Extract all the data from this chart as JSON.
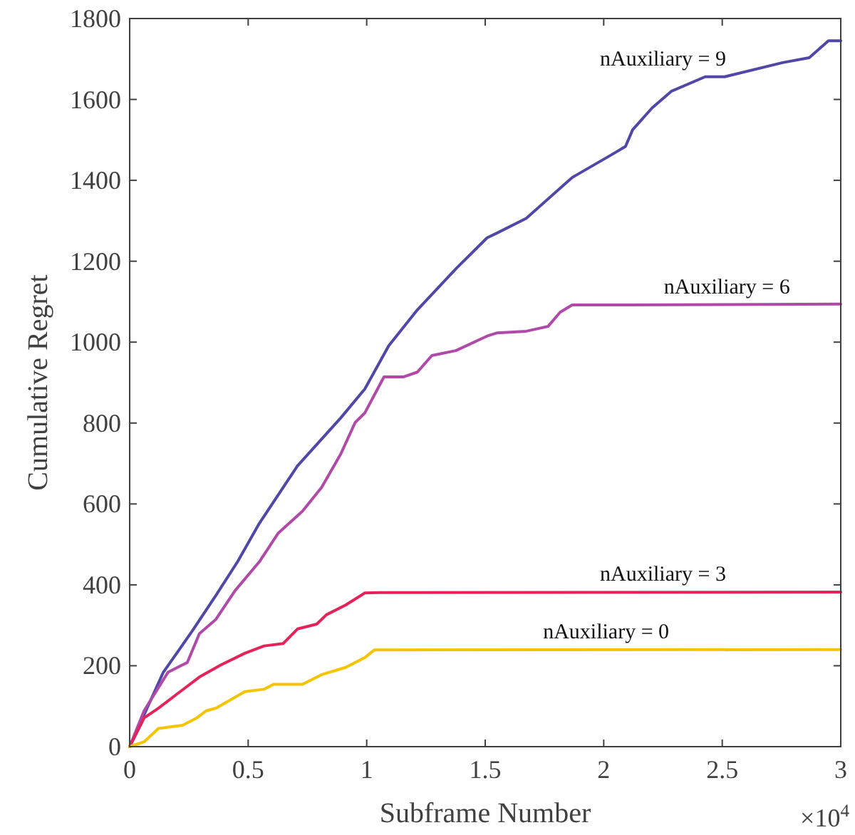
{
  "chart_data": {
    "type": "line",
    "xlabel": "Subframe Number",
    "ylabel": "Cumulative Regret",
    "annotations": [
      "×10$^{4}$"
    ],
    "xlim": [
      0,
      3
    ],
    "xticks": [
      0,
      0.5,
      1,
      1.5,
      2,
      2.5,
      3
    ],
    "ylim": [
      0,
      1800
    ],
    "yticks": [
      0,
      200,
      400,
      600,
      800,
      1000,
      1200,
      1400,
      1600,
      1800
    ],
    "grid": false,
    "marker": "none",
    "line_style": "solid",
    "series": [
      {
        "name": "nAuxiliary = 9",
        "color": "#5147a6",
        "x": [
          0,
          0.142,
          0.263,
          0.364,
          0.455,
          0.547,
          0.708,
          0.891,
          0.992,
          1.093,
          1.214,
          1.376,
          1.508,
          1.551,
          1.673,
          1.867,
          2.041,
          2.092,
          2.122,
          2.204,
          2.285,
          2.428,
          2.51,
          2.755,
          2.867,
          2.948,
          3
        ],
        "values": [
          0,
          184,
          285,
          374,
          457,
          552,
          694,
          813,
          884,
          991,
          1080,
          1181,
          1258,
          1270,
          1306,
          1407,
          1466,
          1484,
          1525,
          1579,
          1620,
          1656,
          1656,
          1691,
          1703,
          1745,
          1745
        ]
      },
      {
        "name": "nAuxiliary = 6",
        "color": "#b04aa8",
        "x": [
          0,
          0.061,
          0.162,
          0.243,
          0.294,
          0.364,
          0.445,
          0.547,
          0.627,
          0.729,
          0.81,
          0.891,
          0.951,
          0.992,
          1.073,
          1.154,
          1.214,
          1.275,
          1.376,
          1.508,
          1.551,
          1.673,
          1.765,
          1.816,
          1.867,
          2.102,
          3
        ],
        "values": [
          0,
          89,
          184,
          208,
          279,
          315,
          386,
          457,
          528,
          582,
          641,
          724,
          801,
          825,
          914,
          914,
          926,
          967,
          979,
          1015,
          1023,
          1027,
          1039,
          1074,
          1092,
          1092,
          1094
        ]
      },
      {
        "name": "nAuxiliary = 3",
        "color": "#e3245a",
        "x": [
          0,
          0.061,
          0.121,
          0.213,
          0.294,
          0.385,
          0.486,
          0.567,
          0.648,
          0.708,
          0.789,
          0.83,
          0.911,
          0.992,
          1.053,
          3
        ],
        "values": [
          0,
          71,
          95,
          136,
          172,
          202,
          231,
          249,
          255,
          291,
          303,
          326,
          350,
          380,
          381,
          382
        ]
      },
      {
        "name": "nAuxiliary = 0",
        "color": "#f5c400",
        "x": [
          0,
          0.061,
          0.121,
          0.223,
          0.283,
          0.324,
          0.364,
          0.486,
          0.567,
          0.607,
          0.729,
          0.81,
          0.911,
          0.992,
          1.032,
          3
        ],
        "values": [
          0,
          12,
          45,
          53,
          71,
          89,
          95,
          136,
          142,
          154,
          154,
          178,
          196,
          220,
          239,
          240
        ]
      }
    ]
  }
}
